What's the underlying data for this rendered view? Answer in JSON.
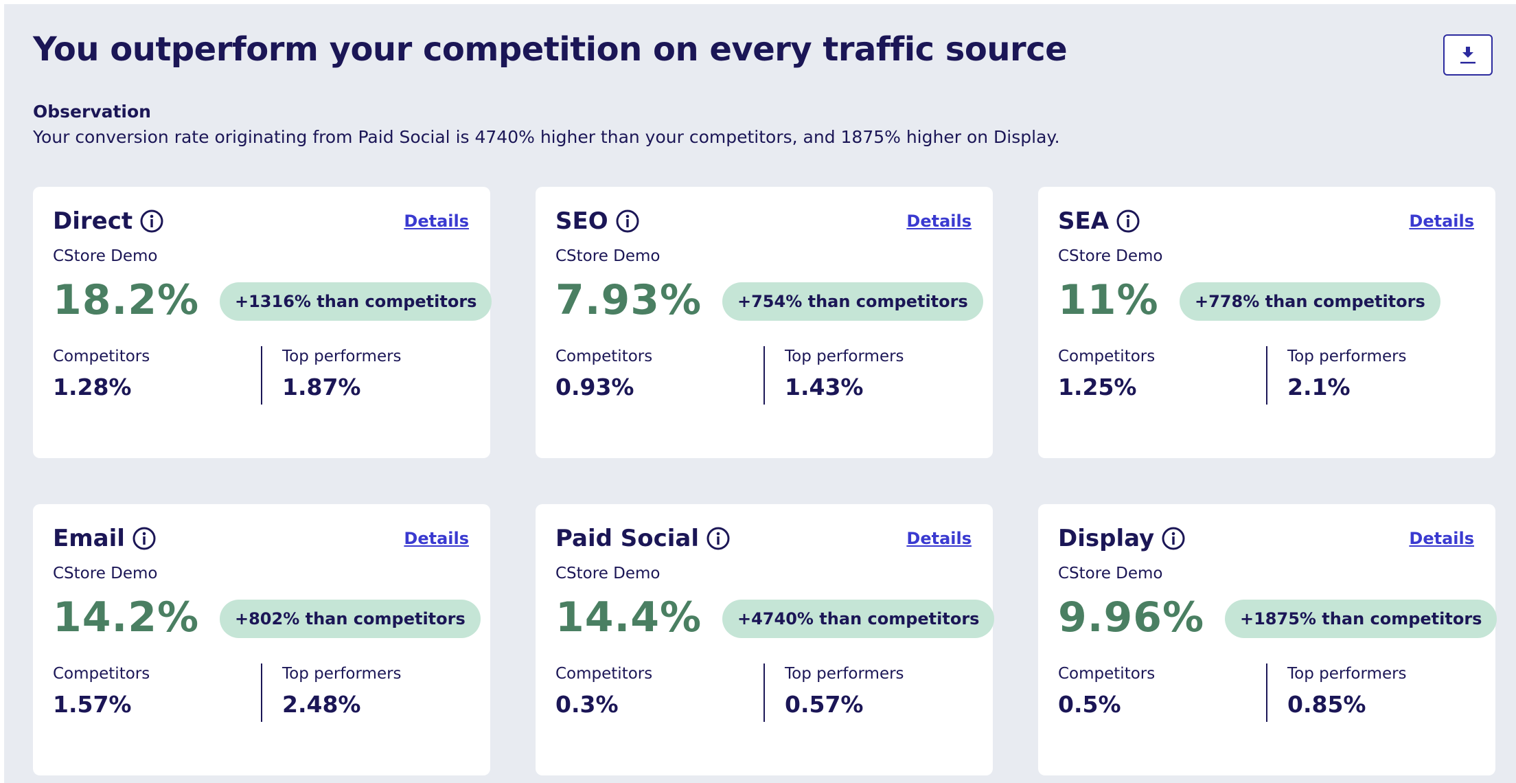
{
  "header": {
    "title": "You outperform your competition on every traffic source"
  },
  "observation": {
    "label": "Observation",
    "text": "Your conversion rate originating from Paid Social is 4740% higher than your competitors, and 1875% higher on Display."
  },
  "cards": [
    {
      "title": "Direct",
      "details": "Details",
      "subtitle": "CStore Demo",
      "value": "18.2%",
      "badge": "+1316% than competitors",
      "competitors_label": "Competitors",
      "competitors_value": "1.28%",
      "top_label": "Top performers",
      "top_value": "1.87%"
    },
    {
      "title": "SEO",
      "details": "Details",
      "subtitle": "CStore Demo",
      "value": "7.93%",
      "badge": "+754% than competitors",
      "competitors_label": "Competitors",
      "competitors_value": "0.93%",
      "top_label": "Top performers",
      "top_value": "1.43%"
    },
    {
      "title": "SEA",
      "details": "Details",
      "subtitle": "CStore Demo",
      "value": "11%",
      "badge": "+778% than competitors",
      "competitors_label": "Competitors",
      "competitors_value": "1.25%",
      "top_label": "Top performers",
      "top_value": "2.1%"
    },
    {
      "title": "Email",
      "details": "Details",
      "subtitle": "CStore Demo",
      "value": "14.2%",
      "badge": "+802% than competitors",
      "competitors_label": "Competitors",
      "competitors_value": "1.57%",
      "top_label": "Top performers",
      "top_value": "2.48%"
    },
    {
      "title": "Paid Social",
      "details": "Details",
      "subtitle": "CStore Demo",
      "value": "14.4%",
      "badge": "+4740% than competitors",
      "competitors_label": "Competitors",
      "competitors_value": "0.3%",
      "top_label": "Top performers",
      "top_value": "0.57%"
    },
    {
      "title": "Display",
      "details": "Details",
      "subtitle": "CStore Demo",
      "value": "9.96%",
      "badge": "+1875% than competitors",
      "competitors_label": "Competitors",
      "competitors_value": "0.5%",
      "top_label": "Top performers",
      "top_value": "0.85%"
    }
  ]
}
